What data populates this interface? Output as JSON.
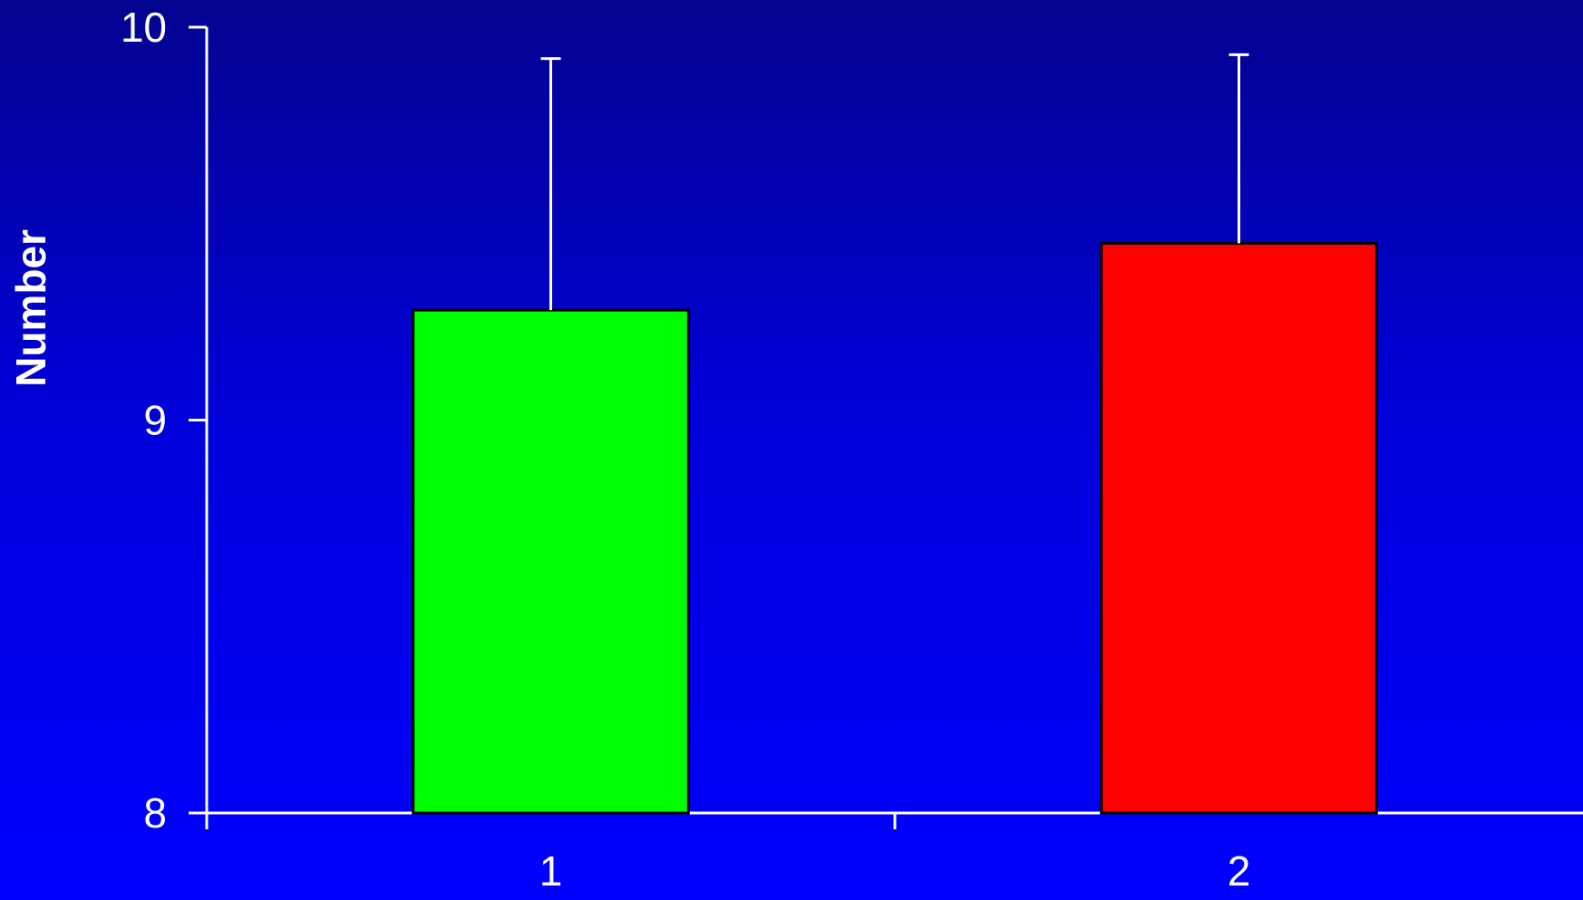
{
  "chart_data": {
    "type": "bar",
    "title": "",
    "xlabel": "",
    "ylabel": "Number",
    "categories": [
      "1",
      "2"
    ],
    "values": [
      9.28,
      9.45
    ],
    "error_upper": [
      9.92,
      9.93
    ],
    "ylim": [
      8,
      10
    ],
    "y_ticks": [
      "8",
      "9",
      "10"
    ],
    "bar_colors": [
      "#00ff00",
      "#ff0000"
    ],
    "background": "#0000ff",
    "axis_color": "#ffffff",
    "grid": false,
    "legend": "none"
  }
}
